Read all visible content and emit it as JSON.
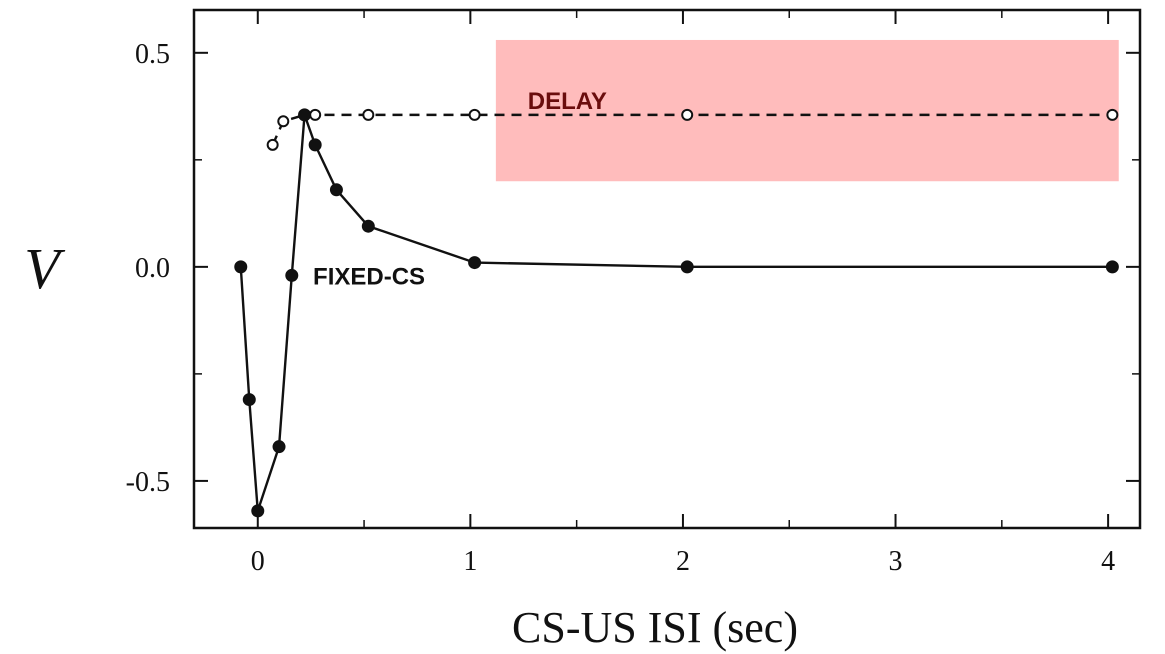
{
  "chart_data": {
    "type": "line",
    "xlabel": "CS-US ISI (sec)",
    "ylabel": "V",
    "xlim": [
      -0.3,
      4.15
    ],
    "ylim": [
      -0.61,
      0.6
    ],
    "x_ticks": [
      0,
      1,
      2,
      3,
      4
    ],
    "x_tick_labels": [
      "0",
      "1",
      "2",
      "3",
      "4"
    ],
    "y_ticks": [
      -0.5,
      0.0,
      0.5
    ],
    "y_tick_labels": [
      "-0.5",
      "0.0",
      "0.5"
    ],
    "grid": false,
    "series": [
      {
        "name": "DELAY",
        "marker": "open-circle",
        "line_style": "dashed",
        "x": [
          0.07,
          0.12,
          0.22,
          0.27,
          0.52,
          1.02,
          2.02,
          4.02
        ],
        "y": [
          0.285,
          0.34,
          0.355,
          0.355,
          0.355,
          0.355,
          0.355,
          0.355
        ]
      },
      {
        "name": "FIXED-CS",
        "marker": "filled-circle",
        "line_style": "solid",
        "x": [
          -0.08,
          -0.04,
          0.0,
          0.1,
          0.16,
          0.22,
          0.27,
          0.37,
          0.52,
          1.02,
          2.02,
          4.02
        ],
        "y": [
          0.0,
          -0.31,
          -0.57,
          -0.42,
          -0.02,
          0.355,
          0.285,
          0.18,
          0.095,
          0.01,
          0.0,
          0.0
        ]
      }
    ],
    "annotations": [
      {
        "text": "DELAY",
        "x": 1.27,
        "y": 0.39,
        "color": "#6a0d0d"
      },
      {
        "text": "FIXED-CS",
        "x": 0.26,
        "y": -0.02,
        "color": "#111111"
      }
    ],
    "highlight_box": {
      "x0": 1.12,
      "x1": 4.05,
      "y0": 0.2,
      "y1": 0.53,
      "color": "#ffbcbc"
    }
  }
}
